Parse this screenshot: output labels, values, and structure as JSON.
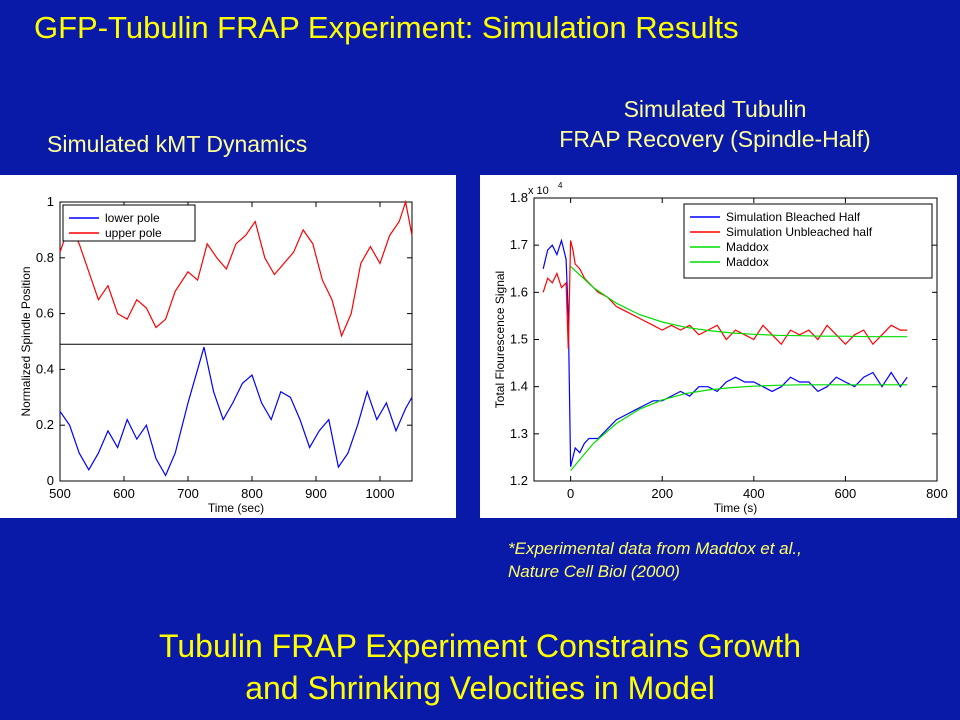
{
  "slide": {
    "title": "GFP-Tubulin FRAP Experiment: Simulation Results",
    "left_caption": "Simulated kMT Dynamics",
    "right_caption_line1": "Simulated Tubulin",
    "right_caption_line2": "FRAP Recovery (Spindle-Half)",
    "footnote_line1": "*Experimental data from Maddox et al.,",
    "footnote_line2": "Nature Cell Biol (2000)",
    "conclusion_line1": "Tubulin FRAP Experiment Constrains Growth",
    "conclusion_line2": "and Shrinking Velocities in Model",
    "colors": {
      "background": "#0a1aa8",
      "title": "#ffff00",
      "blue_series": "#0000ff",
      "red_series": "#ff0000",
      "green_series": "#00dd00"
    }
  },
  "chart_data": [
    {
      "type": "line",
      "title": "",
      "xlabel": "Time (sec)",
      "ylabel": "Normalized Spindle Position",
      "xlim": [
        500,
        1050
      ],
      "ylim": [
        0,
        1
      ],
      "xticks": [
        500,
        600,
        700,
        800,
        900,
        1000
      ],
      "yticks": [
        0,
        0.2,
        0.4,
        0.6,
        0.8,
        1
      ],
      "ytick_labels": [
        "0",
        "0.2",
        "0.4",
        "0.6",
        "0.8",
        "1"
      ],
      "legend": {
        "position": "top-left"
      },
      "reference_line": 0.49,
      "series": [
        {
          "name": "lower pole",
          "color": "#0000ff",
          "x": [
            500,
            515,
            530,
            545,
            560,
            575,
            590,
            605,
            620,
            635,
            650,
            665,
            680,
            700,
            715,
            725,
            740,
            755,
            770,
            785,
            800,
            815,
            830,
            845,
            860,
            875,
            890,
            905,
            920,
            935,
            950,
            965,
            980,
            995,
            1010,
            1025,
            1040,
            1050
          ],
          "y": [
            0.25,
            0.2,
            0.1,
            0.04,
            0.1,
            0.18,
            0.12,
            0.22,
            0.15,
            0.2,
            0.08,
            0.02,
            0.1,
            0.28,
            0.4,
            0.48,
            0.32,
            0.22,
            0.28,
            0.35,
            0.38,
            0.28,
            0.22,
            0.32,
            0.3,
            0.22,
            0.12,
            0.18,
            0.22,
            0.05,
            0.1,
            0.2,
            0.32,
            0.22,
            0.28,
            0.18,
            0.26,
            0.3
          ]
        },
        {
          "name": "upper pole",
          "color": "#ff0000",
          "x": [
            500,
            515,
            530,
            545,
            560,
            575,
            590,
            605,
            620,
            635,
            650,
            665,
            680,
            700,
            715,
            730,
            745,
            760,
            775,
            790,
            805,
            820,
            835,
            850,
            865,
            880,
            895,
            910,
            925,
            940,
            955,
            970,
            985,
            1000,
            1015,
            1030,
            1040,
            1050
          ],
          "y": [
            0.82,
            0.92,
            0.85,
            0.75,
            0.65,
            0.7,
            0.6,
            0.58,
            0.65,
            0.62,
            0.55,
            0.58,
            0.68,
            0.75,
            0.72,
            0.85,
            0.8,
            0.76,
            0.85,
            0.88,
            0.93,
            0.8,
            0.74,
            0.78,
            0.82,
            0.9,
            0.85,
            0.72,
            0.65,
            0.52,
            0.6,
            0.78,
            0.84,
            0.78,
            0.88,
            0.93,
            1.0,
            0.88
          ]
        }
      ]
    },
    {
      "type": "line",
      "title": "",
      "xlabel": "Time (s)",
      "ylabel": "Total Flourescence Signal",
      "y_multiplier": "x 10^4",
      "xlim": [
        -80,
        800
      ],
      "ylim": [
        1.2,
        1.8
      ],
      "xticks": [
        0,
        200,
        400,
        600,
        800
      ],
      "yticks": [
        1.2,
        1.3,
        1.4,
        1.5,
        1.6,
        1.7,
        1.8
      ],
      "ytick_labels": [
        "1.2",
        "1.3",
        "1.4",
        "1.5",
        "1.6",
        "1.7",
        "1.8"
      ],
      "legend": {
        "position": "top-right"
      },
      "series": [
        {
          "name": "Simulation Bleached Half",
          "color": "#0000ff",
          "x": [
            -60,
            -50,
            -40,
            -30,
            -20,
            -10,
            -5,
            0,
            5,
            10,
            20,
            30,
            40,
            60,
            80,
            100,
            120,
            140,
            160,
            180,
            200,
            220,
            240,
            260,
            280,
            300,
            320,
            340,
            360,
            380,
            400,
            420,
            440,
            460,
            480,
            500,
            520,
            540,
            560,
            580,
            600,
            620,
            640,
            660,
            680,
            700,
            720,
            735
          ],
          "y": [
            1.65,
            1.69,
            1.7,
            1.68,
            1.71,
            1.67,
            1.55,
            1.23,
            1.25,
            1.27,
            1.26,
            1.28,
            1.29,
            1.29,
            1.31,
            1.33,
            1.34,
            1.35,
            1.36,
            1.37,
            1.37,
            1.38,
            1.39,
            1.38,
            1.4,
            1.4,
            1.39,
            1.41,
            1.42,
            1.41,
            1.41,
            1.4,
            1.39,
            1.4,
            1.42,
            1.41,
            1.41,
            1.39,
            1.4,
            1.42,
            1.41,
            1.4,
            1.42,
            1.43,
            1.4,
            1.43,
            1.4,
            1.42
          ]
        },
        {
          "name": "Simulation Unbleached half",
          "color": "#ff0000",
          "x": [
            -60,
            -50,
            -40,
            -30,
            -20,
            -10,
            -5,
            0,
            5,
            10,
            20,
            30,
            40,
            60,
            80,
            100,
            120,
            140,
            160,
            180,
            200,
            220,
            240,
            260,
            280,
            300,
            320,
            340,
            360,
            380,
            400,
            420,
            440,
            460,
            480,
            500,
            520,
            540,
            560,
            580,
            600,
            620,
            640,
            660,
            680,
            700,
            720,
            735
          ],
          "y": [
            1.6,
            1.63,
            1.62,
            1.64,
            1.61,
            1.62,
            1.48,
            1.71,
            1.69,
            1.66,
            1.65,
            1.63,
            1.62,
            1.6,
            1.59,
            1.57,
            1.56,
            1.55,
            1.54,
            1.53,
            1.52,
            1.53,
            1.52,
            1.53,
            1.51,
            1.52,
            1.53,
            1.5,
            1.52,
            1.51,
            1.5,
            1.53,
            1.51,
            1.49,
            1.52,
            1.51,
            1.52,
            1.5,
            1.53,
            1.51,
            1.49,
            1.51,
            1.52,
            1.49,
            1.51,
            1.53,
            1.52,
            1.52
          ]
        },
        {
          "name": "Maddox",
          "color": "#00dd00",
          "x": [
            0,
            50,
            100,
            150,
            200,
            250,
            300,
            350,
            400,
            450,
            500,
            550,
            600,
            650,
            700,
            735
          ],
          "y": [
            1.655,
            1.61,
            1.577,
            1.553,
            1.537,
            1.526,
            1.519,
            1.514,
            1.511,
            1.509,
            1.508,
            1.507,
            1.507,
            1.506,
            1.506,
            1.506
          ]
        },
        {
          "name": "Maddox",
          "color": "#00dd00",
          "x": [
            0,
            50,
            100,
            150,
            200,
            250,
            300,
            350,
            400,
            450,
            500,
            550,
            600,
            650,
            700,
            735
          ],
          "y": [
            1.222,
            1.28,
            1.322,
            1.352,
            1.372,
            1.385,
            1.393,
            1.398,
            1.401,
            1.403,
            1.404,
            1.404,
            1.404,
            1.404,
            1.404,
            1.404
          ]
        }
      ]
    }
  ]
}
